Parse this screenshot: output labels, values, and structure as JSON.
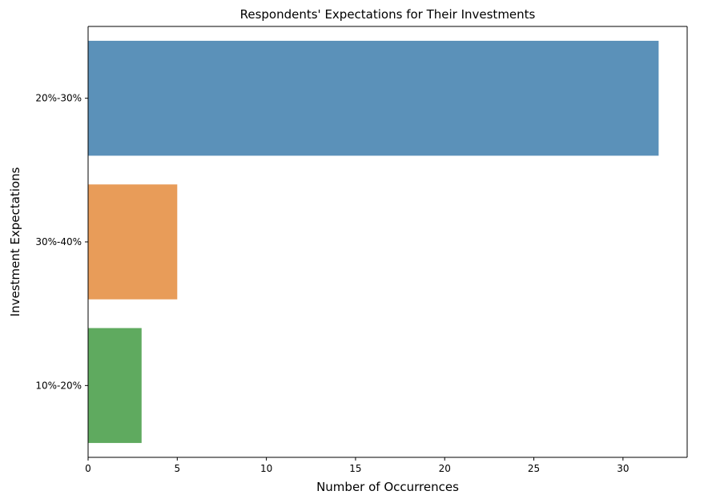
{
  "chart_data": {
    "type": "bar",
    "orientation": "horizontal",
    "title": "Respondents' Expectations for Their Investments",
    "xlabel": "Number of Occurrences",
    "ylabel": "Investment Expectations",
    "categories": [
      "20%-30%",
      "30%-40%",
      "10%-20%"
    ],
    "values": [
      32,
      5,
      3
    ],
    "colors": [
      "#5b91b9",
      "#e89c59",
      "#5faa5f"
    ],
    "xlim": [
      0,
      33.6
    ],
    "xticks": [
      0,
      5,
      10,
      15,
      20,
      25,
      30
    ],
    "grid": false,
    "legend": "none"
  }
}
